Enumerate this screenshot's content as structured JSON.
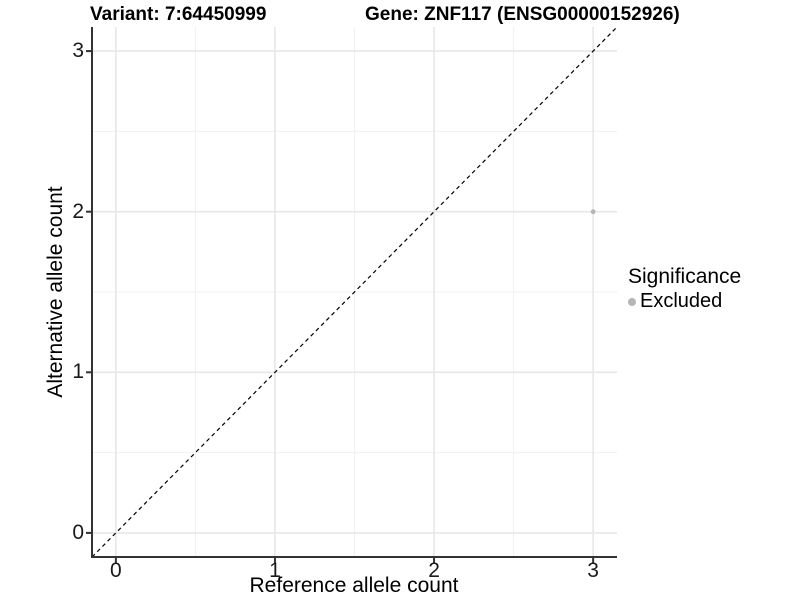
{
  "header": {
    "variant_title": "Variant: 7:64450999",
    "gene_title": "Gene: ZNF117 (ENSG00000152926)"
  },
  "legend": {
    "title": "Significance",
    "items": [
      {
        "label": "Excluded",
        "color": "#b5b5b5"
      }
    ]
  },
  "chart_data": {
    "type": "scatter",
    "title": "Variant: 7:64450999    Gene: ZNF117 (ENSG00000152926)",
    "xlabel": "Reference allele count",
    "ylabel": "Alternative allele count",
    "xlim": [
      -0.15,
      3.15
    ],
    "ylim": [
      -0.15,
      3.15
    ],
    "x_ticks": [
      0,
      1,
      2,
      3
    ],
    "y_ticks": [
      0,
      1,
      2,
      3
    ],
    "x_minor_ticks": [
      0.5,
      1.5,
      2.5
    ],
    "y_minor_ticks": [
      0.5,
      1.5,
      2.5
    ],
    "grid": "major+minor",
    "legend_position": "right",
    "series": [
      {
        "name": "Excluded",
        "color": "#b5b5b5",
        "points": [
          {
            "x": 3,
            "y": 2
          }
        ]
      }
    ],
    "reference_line": {
      "kind": "y=x",
      "style": "dashed",
      "color": "#000000"
    },
    "colors": {
      "grid_major": "#e7e7e7",
      "grid_minor": "#f2f2f2",
      "axis_line": "#333333",
      "background": "#ffffff",
      "point": "#b5b5b5"
    }
  }
}
